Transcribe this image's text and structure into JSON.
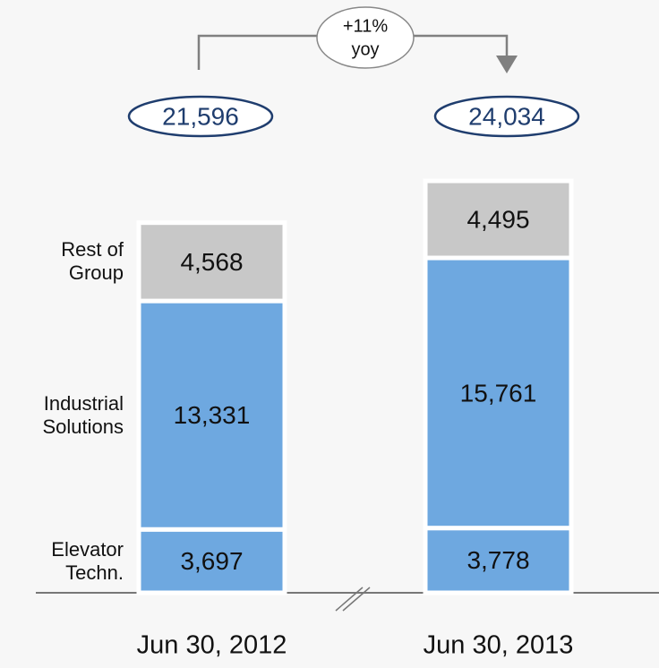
{
  "chart_data": {
    "type": "stacked_bar",
    "categories": [
      "Jun 30, 2012",
      "Jun 30, 2013"
    ],
    "series": [
      {
        "name": "Elevator Techn.",
        "color": "#6ea8e0",
        "values": [
          3697,
          3778
        ],
        "value_labels": [
          "3,697",
          "3,778"
        ]
      },
      {
        "name": "Industrial Solutions",
        "color": "#6ea8e0",
        "values": [
          13331,
          15761
        ],
        "value_labels": [
          "13,331",
          "15,761"
        ]
      },
      {
        "name": "Rest of Group",
        "color": "#c8c8c8",
        "values": [
          4568,
          4495
        ],
        "value_labels": [
          "4,568",
          "4,495"
        ]
      }
    ],
    "total_labels": [
      "21,596",
      "24,034"
    ],
    "change_label": "+11%",
    "change_note": "yoy"
  }
}
